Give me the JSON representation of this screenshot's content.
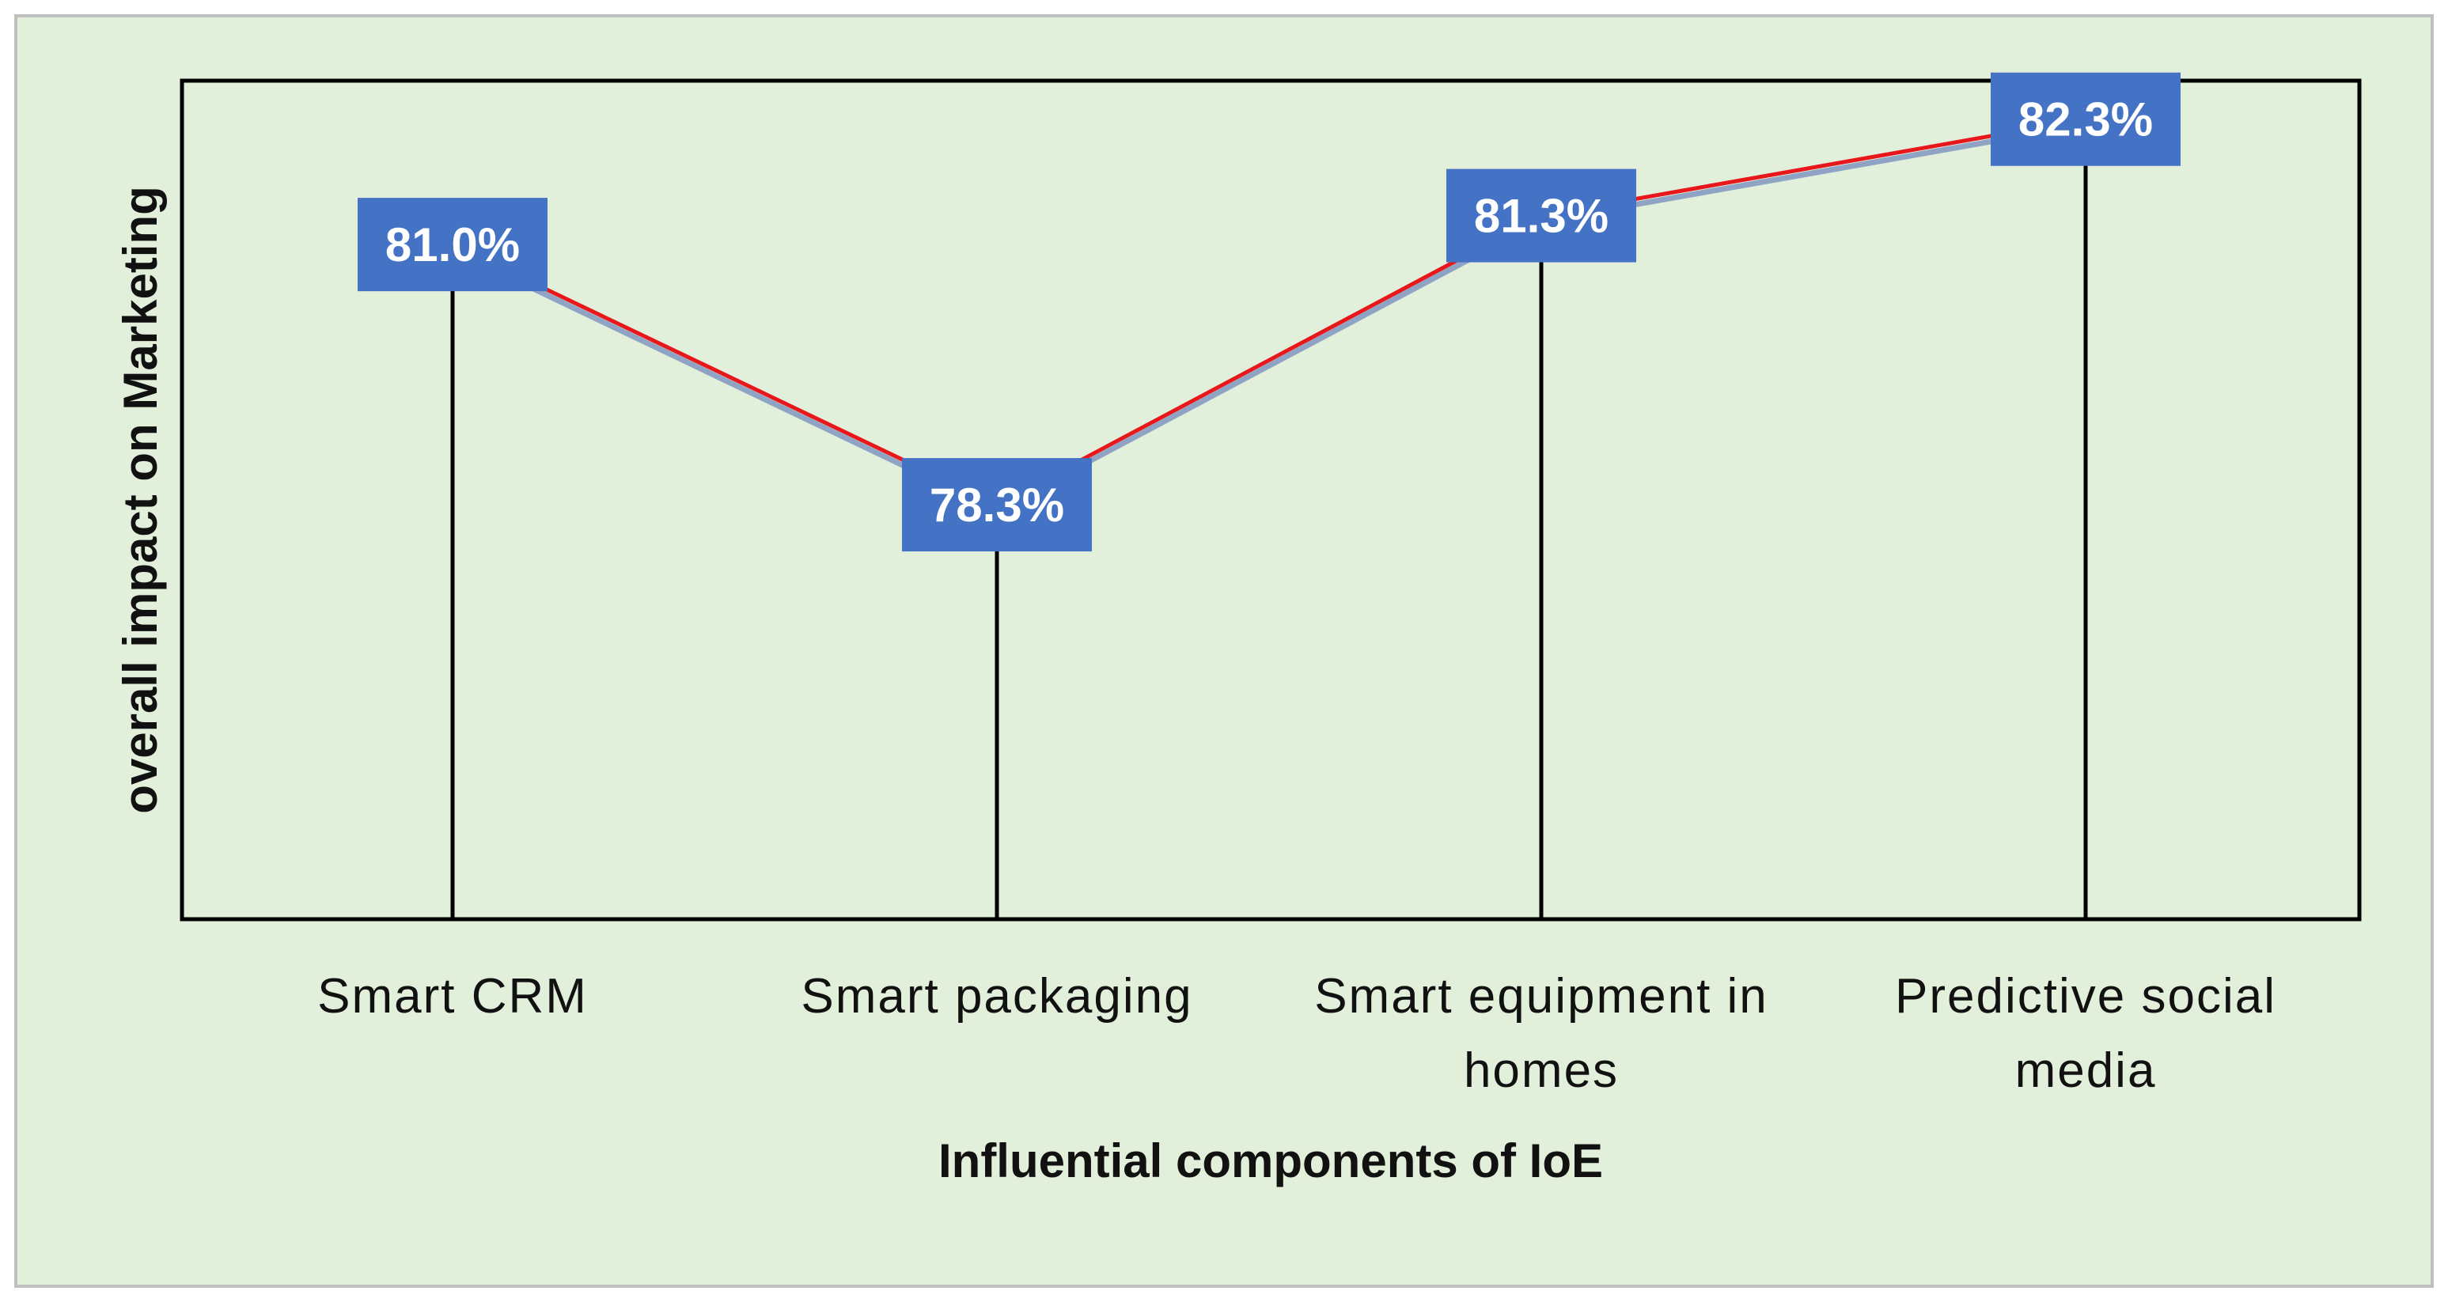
{
  "chart_data": {
    "type": "line",
    "title": "",
    "xlabel": "Influential components of IoE",
    "ylabel": "overall impact on Marketing",
    "categories": [
      [
        "Smart CRM"
      ],
      [
        "Smart packaging"
      ],
      [
        "Smart equipment in",
        "homes"
      ],
      [
        "Predictive social",
        "media"
      ]
    ],
    "series": [
      {
        "name": "overall impact on Marketing",
        "values": [
          81.0,
          78.3,
          81.3,
          82.3
        ],
        "labels": [
          "81.0%",
          "78.3%",
          "81.3%",
          "82.3%"
        ],
        "color": "#e8171b",
        "shadow_color": "#8fa4c4"
      }
    ],
    "ylim": [
      74.0,
      82.7
    ],
    "grid": false,
    "legend": "none",
    "drop_lines": true,
    "colors": {
      "background": "#e2efda",
      "frame": "#000000",
      "label_box": "#4472c4",
      "drop_line": "#000000"
    }
  }
}
